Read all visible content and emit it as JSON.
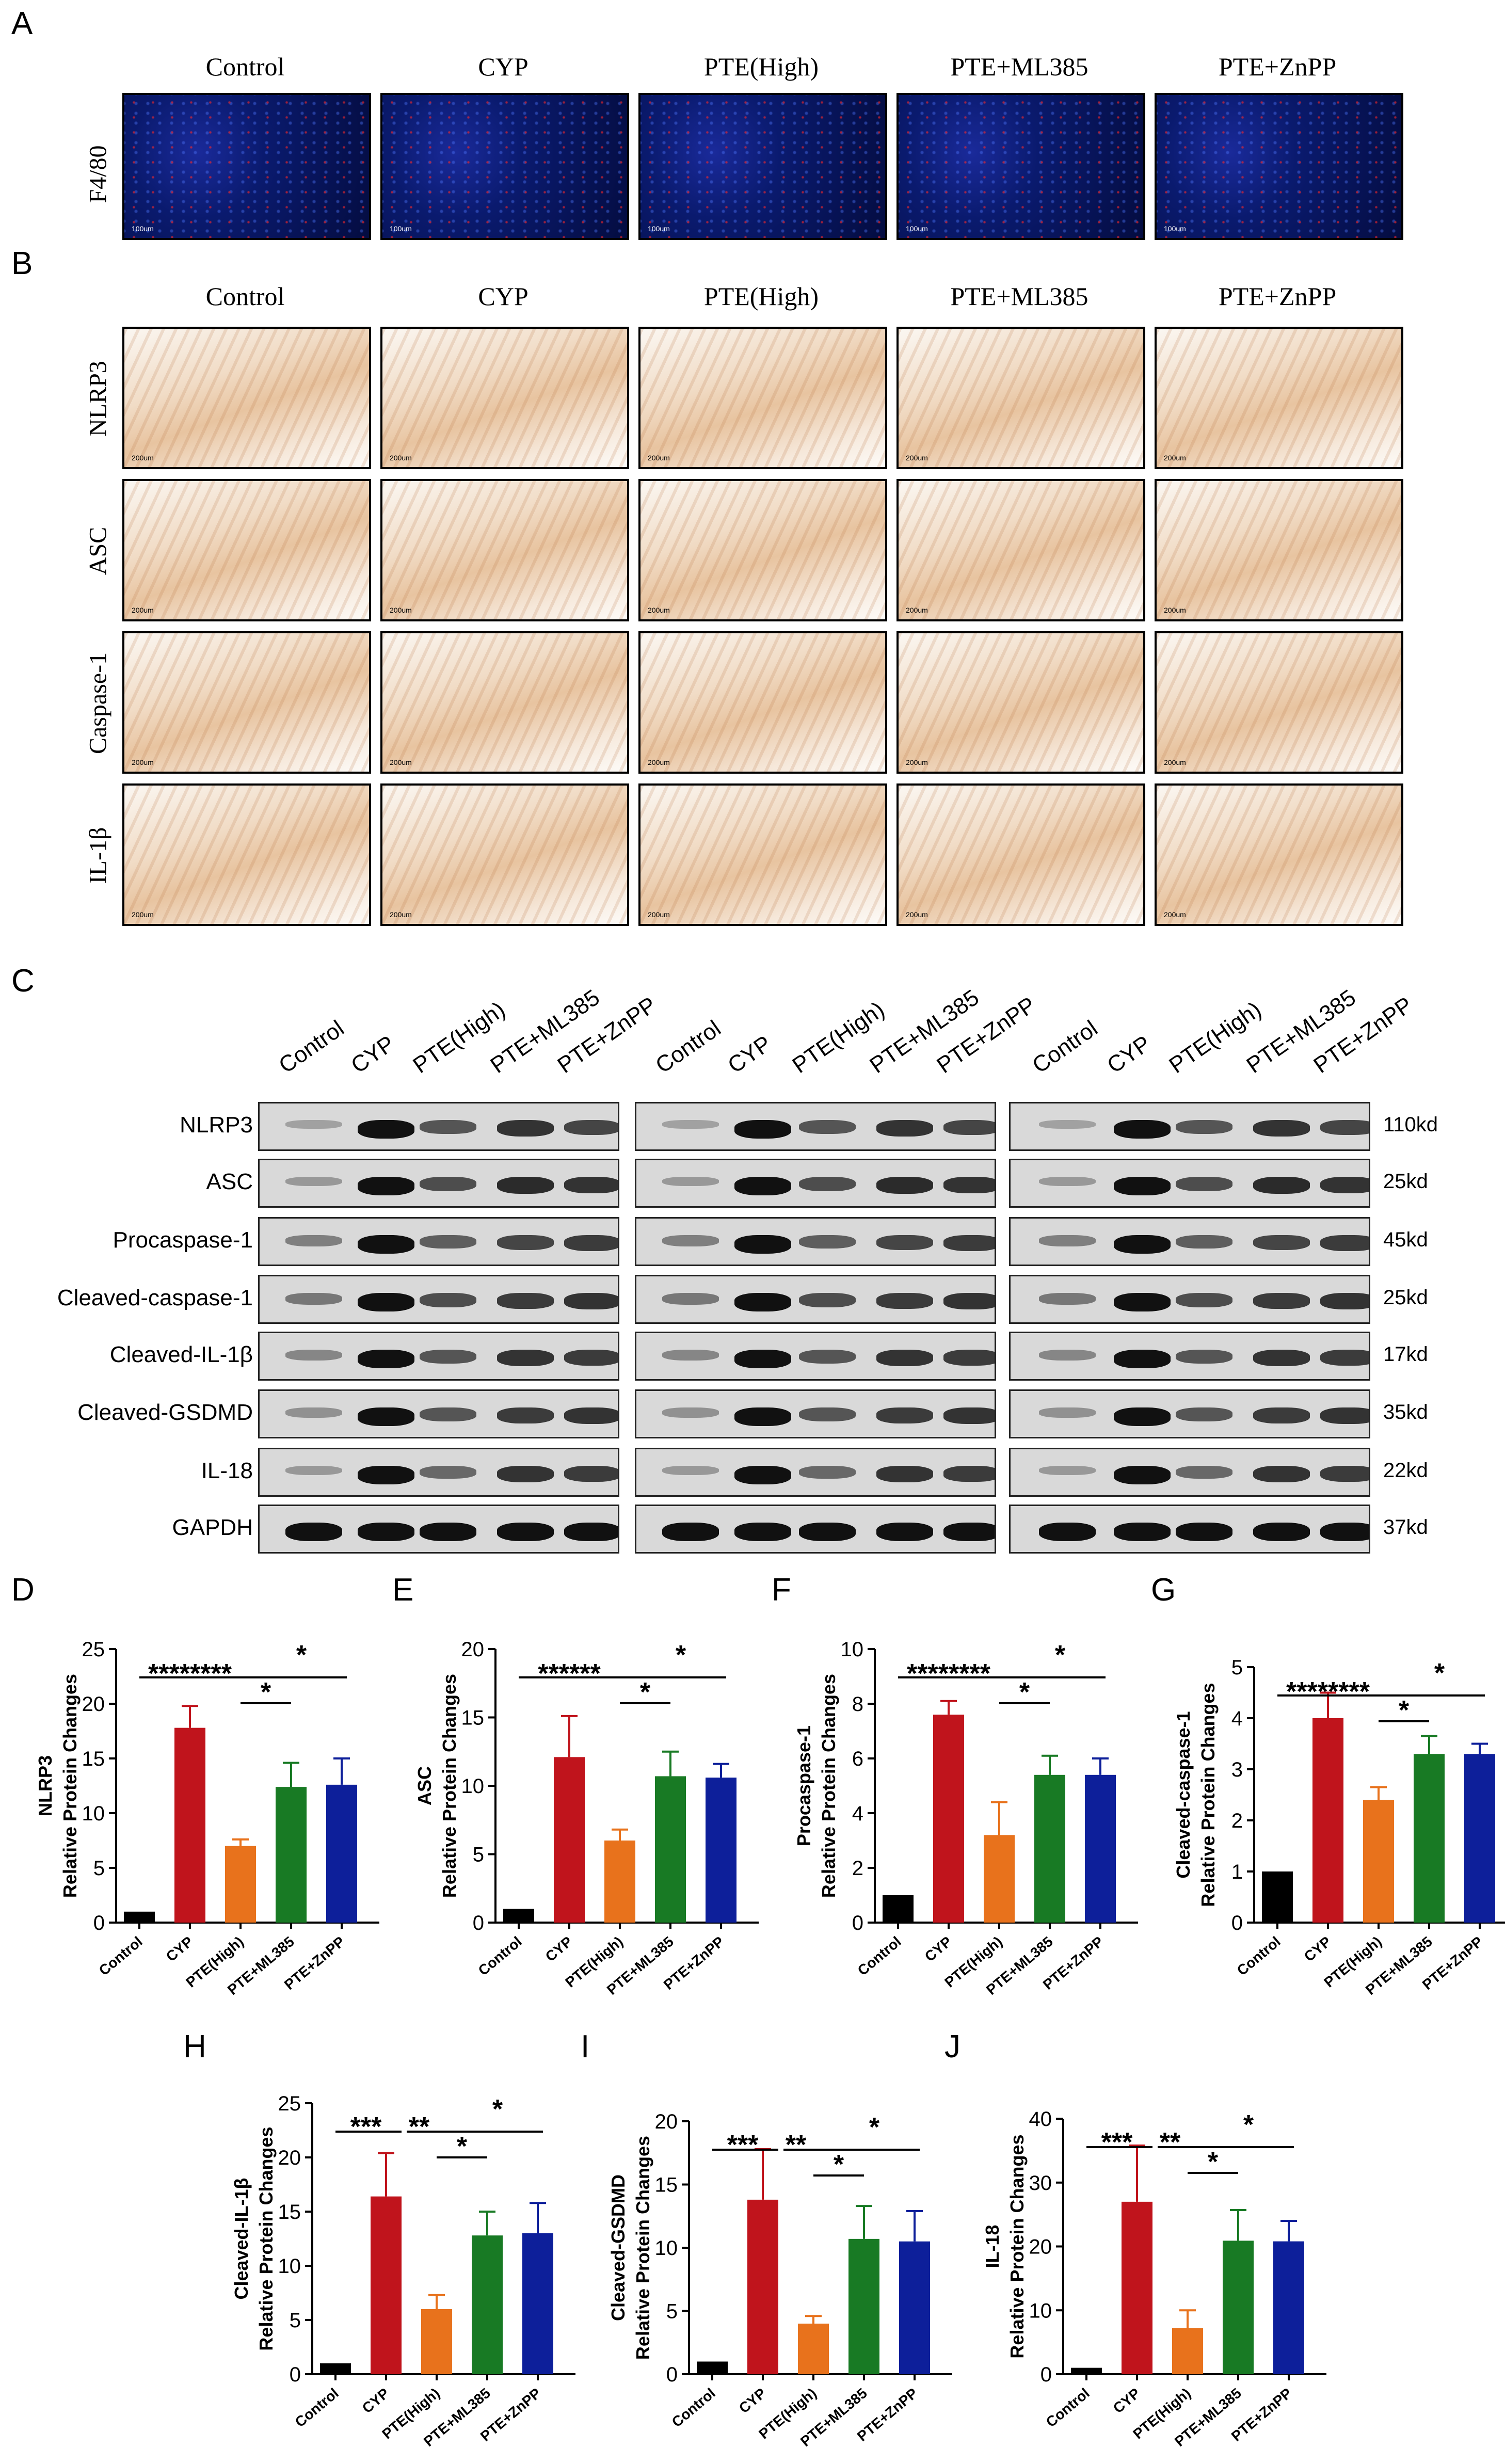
{
  "panels": {
    "A": "A",
    "B": "B",
    "C": "C",
    "D": "D",
    "E": "E",
    "F": "F",
    "G": "G",
    "H": "H",
    "I": "I",
    "J": "J"
  },
  "groups": [
    "Control",
    "CYP",
    "PTE(High)",
    "PTE+ML385",
    "PTE+ZnPP"
  ],
  "panelA": {
    "row": "F4/80",
    "scale": "100um"
  },
  "panelB": {
    "rows": [
      "NLRP3",
      "ASC",
      "Caspase-1",
      "IL-1β"
    ],
    "scale": "200um"
  },
  "panelC": {
    "proteins": [
      "NLRP3",
      "ASC",
      "Procaspase-1",
      "Cleaved-caspase-1",
      "Cleaved-IL-1β",
      "Cleaved-GSDMD",
      "IL-18",
      "GAPDH"
    ],
    "sizes": [
      "110kd",
      "25kd",
      "45kd",
      "25kd",
      "17kd",
      "35kd",
      "22kd",
      "37kd"
    ]
  },
  "colors": {
    "Control": "#000000",
    "CYP": "#c0141c",
    "PTE(High)": "#e8721c",
    "PTE+ML385": "#187a24",
    "PTE+ZnPP": "#0d1f9a"
  },
  "chart_data": [
    {
      "id": "D",
      "type": "bar",
      "categories": [
        "Control",
        "CYP",
        "PTE(High)",
        "PTE+ML385",
        "PTE+ZnPP"
      ],
      "values": [
        1,
        17.8,
        7,
        12.4,
        12.6
      ],
      "errors": [
        0,
        2,
        0.6,
        2.2,
        2.4
      ],
      "ylabel": "NLRP3\nRelative Protein Changes",
      "ylim": [
        0,
        25
      ],
      "ticks": [
        0,
        5,
        10,
        15,
        20,
        25
      ],
      "sig": [
        "********",
        "*",
        "*"
      ]
    },
    {
      "id": "E",
      "type": "bar",
      "categories": [
        "Control",
        "CYP",
        "PTE(High)",
        "PTE+ML385",
        "PTE+ZnPP"
      ],
      "values": [
        1,
        12.1,
        6,
        10.7,
        10.6
      ],
      "errors": [
        0,
        3,
        0.8,
        1.8,
        1
      ],
      "ylabel": "ASC\nRelative Protein Changes",
      "ylim": [
        0,
        20
      ],
      "ticks": [
        0,
        5,
        10,
        15,
        20
      ],
      "sig": [
        "******",
        "*",
        "*"
      ]
    },
    {
      "id": "F",
      "type": "bar",
      "categories": [
        "Control",
        "CYP",
        "PTE(High)",
        "PTE+ML385",
        "PTE+ZnPP"
      ],
      "values": [
        1,
        7.6,
        3.2,
        5.4,
        5.4
      ],
      "errors": [
        0,
        0.5,
        1.2,
        0.7,
        0.6
      ],
      "ylabel": "Procaspase-1\nRelative Protein Changes",
      "ylim": [
        0,
        10
      ],
      "ticks": [
        0,
        2,
        4,
        6,
        8,
        10
      ],
      "sig": [
        "********",
        "*",
        "*"
      ]
    },
    {
      "id": "G",
      "type": "bar",
      "categories": [
        "Control",
        "CYP",
        "PTE(High)",
        "PTE+ML385",
        "PTE+ZnPP"
      ],
      "values": [
        1,
        4,
        2.4,
        3.3,
        3.3
      ],
      "errors": [
        0,
        0.5,
        0.25,
        0.35,
        0.2
      ],
      "ylabel": "Cleaved-caspase-1\nRelative Protein Changes",
      "ylim": [
        0,
        5
      ],
      "ticks": [
        0,
        1,
        2,
        3,
        4,
        5
      ],
      "sig": [
        "********",
        "*",
        "*"
      ]
    },
    {
      "id": "H",
      "type": "bar",
      "categories": [
        "Control",
        "CYP",
        "PTE(High)",
        "PTE+ML385",
        "PTE+ZnPP"
      ],
      "values": [
        1,
        16.4,
        6,
        12.8,
        13
      ],
      "errors": [
        0,
        4,
        1.3,
        2.2,
        2.8
      ],
      "ylabel": "Cleaved-IL-1β\nRelative Protein Changes",
      "ylim": [
        0,
        25
      ],
      "ticks": [
        0,
        5,
        10,
        15,
        20,
        25
      ],
      "sig": [
        "***",
        "**",
        "*",
        "*"
      ]
    },
    {
      "id": "I",
      "type": "bar",
      "categories": [
        "Control",
        "CYP",
        "PTE(High)",
        "PTE+ML385",
        "PTE+ZnPP"
      ],
      "values": [
        1,
        13.8,
        4,
        10.7,
        10.5
      ],
      "errors": [
        0,
        4,
        0.6,
        2.6,
        2.4
      ],
      "ylabel": "Cleaved-GSDMD\nRelative Protein Changes",
      "ylim": [
        0,
        20
      ],
      "ticks": [
        0,
        5,
        10,
        15,
        20
      ],
      "sig": [
        "***",
        "**",
        "*",
        "*"
      ]
    },
    {
      "id": "J",
      "type": "bar",
      "categories": [
        "Control",
        "CYP",
        "PTE(High)",
        "PTE+ML385",
        "PTE+ZnPP"
      ],
      "values": [
        1,
        27,
        7.2,
        20.9,
        20.8
      ],
      "errors": [
        0,
        8.8,
        2.8,
        4.8,
        3.2
      ],
      "ylabel": "IL-18\nRelative Protein Changes",
      "ylim": [
        0,
        40
      ],
      "ticks": [
        0,
        10,
        20,
        30,
        40
      ],
      "sig": [
        "***",
        "**",
        "*",
        "*"
      ]
    }
  ]
}
